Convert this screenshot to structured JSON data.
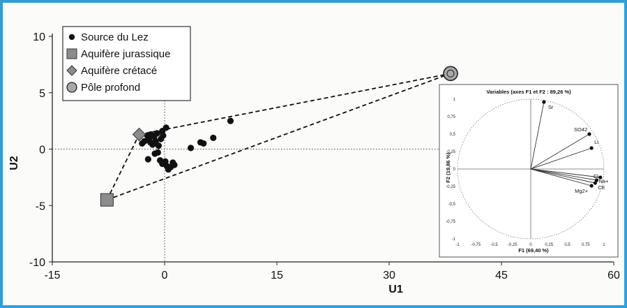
{
  "chart_data": [
    {
      "type": "scatter",
      "title": "",
      "xlabel": "U1",
      "ylabel": "U2",
      "xlim": [
        -15,
        60
      ],
      "ylim": [
        -10,
        10
      ],
      "x_ticks": [
        "-15",
        "0",
        "15",
        "30",
        "45",
        "60"
      ],
      "y_ticks": [
        "10",
        "5",
        "0",
        "-5",
        "-10"
      ],
      "grid": false,
      "reference_lines": "dotted lines at x=0 and y=0",
      "legend_position": "top-left",
      "legend": [
        {
          "label": "Source du Lez",
          "marker": "circle",
          "color": "#111111"
        },
        {
          "label": "Aquifère jurassique",
          "marker": "square",
          "color": "#8c8c8c"
        },
        {
          "label": "Aquifère crétacé",
          "marker": "diamond",
          "color": "#8c8c8c"
        },
        {
          "label": "Pôle profond",
          "marker": "circle-ring",
          "color": "#a8a8a8"
        }
      ],
      "series": [
        {
          "name": "Source du Lez",
          "points": [
            [
              -3.0,
              0.5
            ],
            [
              -2.7,
              0.7
            ],
            [
              -2.3,
              1.2
            ],
            [
              -2.1,
              0.9
            ],
            [
              -1.9,
              0.6
            ],
            [
              -1.8,
              1.3
            ],
            [
              -1.6,
              0.4
            ],
            [
              -1.4,
              1.1
            ],
            [
              -1.2,
              0.7
            ],
            [
              -1.0,
              1.4
            ],
            [
              -0.8,
              0.3
            ],
            [
              -0.5,
              0.9
            ],
            [
              -0.3,
              1.6
            ],
            [
              -0.2,
              1.2
            ],
            [
              0.2,
              1.9
            ],
            [
              -1.3,
              -0.4
            ],
            [
              -0.9,
              -0.3
            ],
            [
              -0.6,
              -1.0
            ],
            [
              -0.3,
              -1.3
            ],
            [
              0.1,
              -1.1
            ],
            [
              0.3,
              -1.5
            ],
            [
              0.5,
              -1.8
            ],
            [
              0.8,
              -1.6
            ],
            [
              1.1,
              -1.2
            ],
            [
              1.3,
              -1.4
            ],
            [
              -2.2,
              -0.9
            ],
            [
              3.5,
              0.1
            ],
            [
              4.8,
              0.6
            ],
            [
              5.2,
              0.5
            ],
            [
              6.5,
              1.0
            ],
            [
              8.8,
              2.5
            ]
          ]
        },
        {
          "name": "Aquifère jurassique",
          "points": [
            [
              -7.7,
              -4.5
            ]
          ]
        },
        {
          "name": "Aquifère crétacé",
          "points": [
            [
              -3.4,
              1.3
            ]
          ]
        },
        {
          "name": "Pôle profond",
          "points": [
            [
              38.2,
              6.7
            ]
          ]
        }
      ],
      "mixing_lines": [
        {
          "from": "Aquifère jurassique",
          "to": "Aquifère crétacé",
          "style": "dashed"
        },
        {
          "from": "Aquifère jurassique",
          "to": "Pôle profond",
          "style": "dashed"
        },
        {
          "from": "Aquifère crétacé",
          "to": "Pôle profond",
          "style": "dashed"
        }
      ]
    },
    {
      "type": "scatter",
      "title": "Variables (axes F1 et F2 : 89,26 %)",
      "xlabel": "F1 (69,40 %)",
      "ylabel": "F2 (19,86 %)",
      "xlim": [
        -1,
        1
      ],
      "ylim": [
        -1,
        1
      ],
      "x_ticks": [
        "-1",
        "-0,75",
        "-0,5",
        "-0,25",
        "0",
        "0,25",
        "0,5",
        "0,75",
        "1"
      ],
      "y_ticks": [
        "1",
        "0,75",
        "0,5",
        "0,25",
        "0",
        "-0,25",
        "-0,5",
        "-0,75",
        "-1"
      ],
      "correlation_circle": true,
      "series": [
        {
          "name": "",
          "points": [
            {
              "label": "Sr",
              "x": 0.18,
              "y": 0.96
            },
            {
              "label": "SO42",
              "x": 0.8,
              "y": 0.5
            },
            {
              "label": "Li",
              "x": 0.83,
              "y": 0.3
            },
            {
              "label": "Cl",
              "x": 0.95,
              "y": -0.12
            },
            {
              "label": "Na+",
              "x": 0.9,
              "y": -0.16
            },
            {
              "label": "CE",
              "x": 0.88,
              "y": -0.2
            },
            {
              "label": "Mg2+",
              "x": 0.83,
              "y": -0.24
            }
          ]
        }
      ]
    }
  ]
}
